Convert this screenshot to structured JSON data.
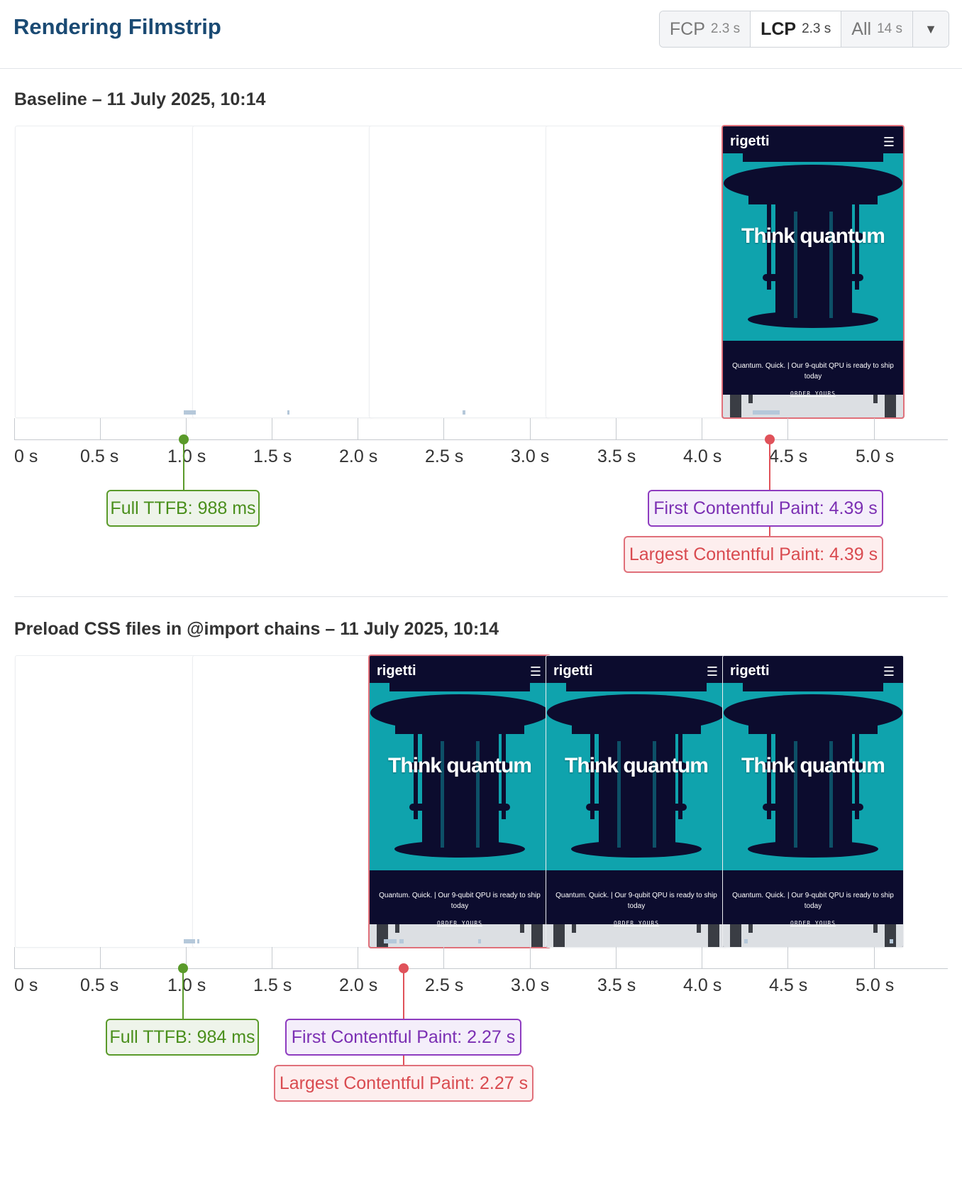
{
  "header": {
    "title": "Rendering Filmstrip",
    "filters": [
      {
        "label": "FCP",
        "value": "2.3 s",
        "active": false
      },
      {
        "label": "LCP",
        "value": "2.3 s",
        "active": true
      },
      {
        "label": "All",
        "value": "14 s",
        "active": false
      }
    ],
    "dropdown_icon": "chevron-down-icon"
  },
  "axis": {
    "ticks": [
      "0 s",
      "0.5 s",
      "1.0 s",
      "1.5 s",
      "2.0 s",
      "2.5 s",
      "3.0 s",
      "3.5 s",
      "4.0 s",
      "4.5 s",
      "5.0 s"
    ]
  },
  "screenshot": {
    "brand": "rigetti",
    "menu_icon": "hamburger-menu-icon",
    "hero": "Think quantum",
    "caption": "Quantum. Quick. | Our 9-qubit QPU is ready to ship today",
    "cta": "ORDER YOURS"
  },
  "tests": [
    {
      "title": "Baseline – 11 July 2025, 10:14",
      "frames": [
        "blank",
        "blank",
        "blank",
        "blank",
        "page"
      ],
      "ttfb": "Full TTFB: 988 ms",
      "fcp": "First Contentful Paint: 4.39 s",
      "lcp": "Largest Contentful Paint: 4.39 s"
    },
    {
      "title": "Preload CSS files in @import chains – 11 July 2025, 10:14",
      "frames": [
        "blank",
        "blank",
        "page",
        "page",
        "page"
      ],
      "ttfb": "Full TTFB: 984 ms",
      "fcp": "First Contentful Paint: 2.27 s",
      "lcp": "Largest Contentful Paint: 2.27 s"
    }
  ],
  "colors": {
    "ttfb": "#5a9a2a",
    "fcp": "#8e3cc0",
    "lcp": "#e0525a",
    "title": "#1a4a73"
  }
}
